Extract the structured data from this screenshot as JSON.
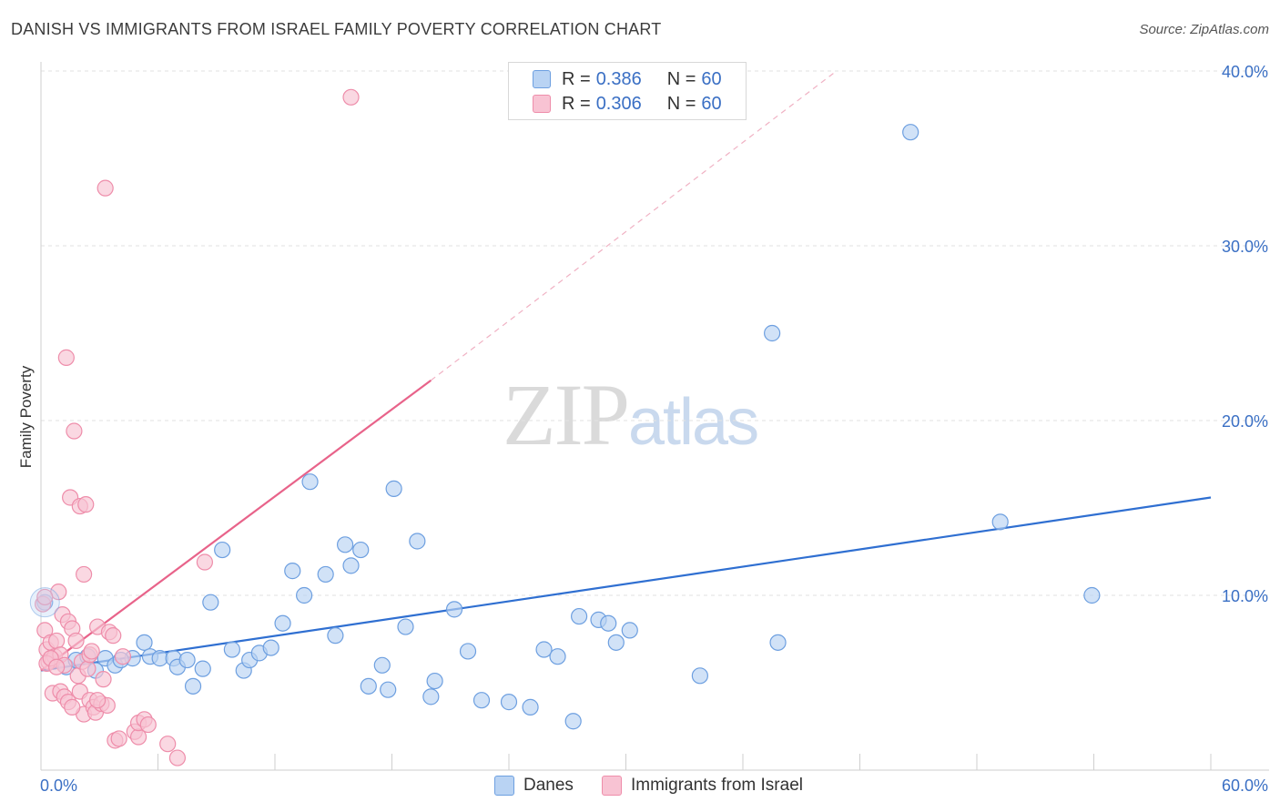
{
  "header": {
    "title": "DANISH VS IMMIGRANTS FROM ISRAEL FAMILY POVERTY CORRELATION CHART",
    "source": "Source: ZipAtlas.com"
  },
  "legend": {
    "rows": [
      {
        "r_label": "R =",
        "r_value": "0.386",
        "n_label": "N =",
        "n_value": "60"
      },
      {
        "r_label": "R =",
        "r_value": "0.306",
        "n_label": "N =",
        "n_value": "60"
      }
    ]
  },
  "bottom_legend": {
    "danes": "Danes",
    "israel": "Immigrants from Israel"
  },
  "watermark": {
    "zip": "ZIP",
    "atlas": "atlas"
  },
  "colors": {
    "danes_fill": "#b9d3f3",
    "danes_stroke": "#6d9fe0",
    "danes_line": "#2f6fd1",
    "israel_fill": "#f8c3d3",
    "israel_stroke": "#ee8daa",
    "israel_line": "#e8638a",
    "tick_text": "#3a6fc4",
    "grid": "#e2e2e2"
  },
  "chart_data": {
    "type": "scatter",
    "title": "DANISH VS IMMIGRANTS FROM ISRAEL FAMILY POVERTY CORRELATION CHART",
    "xlabel": "",
    "ylabel": "Family Poverty",
    "xlim": [
      0,
      60
    ],
    "ylim": [
      0,
      40
    ],
    "x_tick_labels": [
      "0.0%",
      "60.0%"
    ],
    "y_ticks": [
      10,
      20,
      30,
      40
    ],
    "y_tick_labels": [
      "10.0%",
      "20.0%",
      "30.0%",
      "40.0%"
    ],
    "grid": true,
    "series": [
      {
        "name": "Danes",
        "r": 0.386,
        "n": 60,
        "trend": {
          "x0": 0,
          "y0": 5.7,
          "x1": 60,
          "y1": 15.6
        },
        "points": [
          [
            0.2,
            9.6
          ],
          [
            1.3,
            5.9
          ],
          [
            1.8,
            6.3
          ],
          [
            2.4,
            6.5
          ],
          [
            2.8,
            5.7
          ],
          [
            3.3,
            6.4
          ],
          [
            3.8,
            6.0
          ],
          [
            4.7,
            6.4
          ],
          [
            4.1,
            6.3
          ],
          [
            5.3,
            7.3
          ],
          [
            5.6,
            6.5
          ],
          [
            6.1,
            6.4
          ],
          [
            6.8,
            6.4
          ],
          [
            7.0,
            5.9
          ],
          [
            7.5,
            6.3
          ],
          [
            7.8,
            4.8
          ],
          [
            8.3,
            5.8
          ],
          [
            8.7,
            9.6
          ],
          [
            9.3,
            12.6
          ],
          [
            9.8,
            6.9
          ],
          [
            10.4,
            5.7
          ],
          [
            10.7,
            6.3
          ],
          [
            11.2,
            6.7
          ],
          [
            11.8,
            7.0
          ],
          [
            12.4,
            8.4
          ],
          [
            12.9,
            11.4
          ],
          [
            13.5,
            10.0
          ],
          [
            13.8,
            16.5
          ],
          [
            14.6,
            11.2
          ],
          [
            15.1,
            7.7
          ],
          [
            15.6,
            12.9
          ],
          [
            15.9,
            11.7
          ],
          [
            16.4,
            12.6
          ],
          [
            16.8,
            4.8
          ],
          [
            17.5,
            6.0
          ],
          [
            17.8,
            4.6
          ],
          [
            18.1,
            16.1
          ],
          [
            18.7,
            8.2
          ],
          [
            19.3,
            13.1
          ],
          [
            20.0,
            4.2
          ],
          [
            20.2,
            5.1
          ],
          [
            21.2,
            9.2
          ],
          [
            21.9,
            6.8
          ],
          [
            22.6,
            4.0
          ],
          [
            24.0,
            3.9
          ],
          [
            25.1,
            3.6
          ],
          [
            25.8,
            6.9
          ],
          [
            26.5,
            6.5
          ],
          [
            27.3,
            2.8
          ],
          [
            27.6,
            8.8
          ],
          [
            28.6,
            8.6
          ],
          [
            29.1,
            8.4
          ],
          [
            29.5,
            7.3
          ],
          [
            30.2,
            8.0
          ],
          [
            33.8,
            5.4
          ],
          [
            37.5,
            25.0
          ],
          [
            37.8,
            7.3
          ],
          [
            44.6,
            36.5
          ],
          [
            49.2,
            14.2
          ],
          [
            53.9,
            10.0
          ]
        ]
      },
      {
        "name": "Immigrants from Israel",
        "r": 0.306,
        "n": 60,
        "trend": {
          "x0": 0,
          "y0": 5.7,
          "x1": 20.0,
          "y1": 22.3,
          "dashed_to": {
            "x": 40.8,
            "y": 40.0
          }
        },
        "points": [
          [
            0.1,
            9.5
          ],
          [
            0.2,
            8.0
          ],
          [
            0.3,
            6.9
          ],
          [
            0.4,
            6.2
          ],
          [
            0.5,
            7.3
          ],
          [
            0.6,
            6.3
          ],
          [
            0.6,
            4.4
          ],
          [
            0.7,
            6.5
          ],
          [
            0.8,
            7.4
          ],
          [
            0.9,
            10.2
          ],
          [
            1.0,
            6.6
          ],
          [
            1.0,
            4.5
          ],
          [
            1.1,
            8.9
          ],
          [
            1.2,
            6.0
          ],
          [
            1.2,
            4.2
          ],
          [
            1.3,
            23.6
          ],
          [
            1.4,
            8.5
          ],
          [
            1.4,
            3.9
          ],
          [
            1.5,
            15.6
          ],
          [
            1.6,
            8.1
          ],
          [
            1.7,
            19.4
          ],
          [
            1.8,
            7.4
          ],
          [
            1.9,
            5.4
          ],
          [
            2.0,
            4.5
          ],
          [
            2.0,
            15.1
          ],
          [
            2.1,
            6.2
          ],
          [
            2.2,
            11.2
          ],
          [
            2.2,
            3.2
          ],
          [
            2.3,
            15.2
          ],
          [
            2.4,
            5.8
          ],
          [
            2.5,
            6.6
          ],
          [
            2.5,
            4.0
          ],
          [
            2.6,
            6.8
          ],
          [
            2.7,
            3.6
          ],
          [
            2.8,
            3.3
          ],
          [
            2.9,
            8.2
          ],
          [
            3.1,
            3.8
          ],
          [
            3.2,
            5.2
          ],
          [
            3.3,
            33.3
          ],
          [
            3.4,
            3.7
          ],
          [
            3.5,
            7.9
          ],
          [
            3.7,
            7.7
          ],
          [
            3.8,
            1.7
          ],
          [
            4.0,
            1.8
          ],
          [
            4.2,
            6.5
          ],
          [
            4.8,
            2.2
          ],
          [
            5.0,
            1.9
          ],
          [
            5.0,
            2.7
          ],
          [
            5.3,
            2.9
          ],
          [
            5.5,
            2.6
          ],
          [
            6.5,
            1.5
          ],
          [
            7.0,
            0.7
          ],
          [
            8.4,
            11.9
          ],
          [
            15.9,
            38.5
          ],
          [
            0.3,
            6.1
          ],
          [
            0.5,
            6.4
          ],
          [
            0.8,
            5.9
          ],
          [
            1.6,
            3.6
          ],
          [
            2.9,
            4.0
          ],
          [
            0.2,
            9.9
          ]
        ]
      }
    ]
  }
}
